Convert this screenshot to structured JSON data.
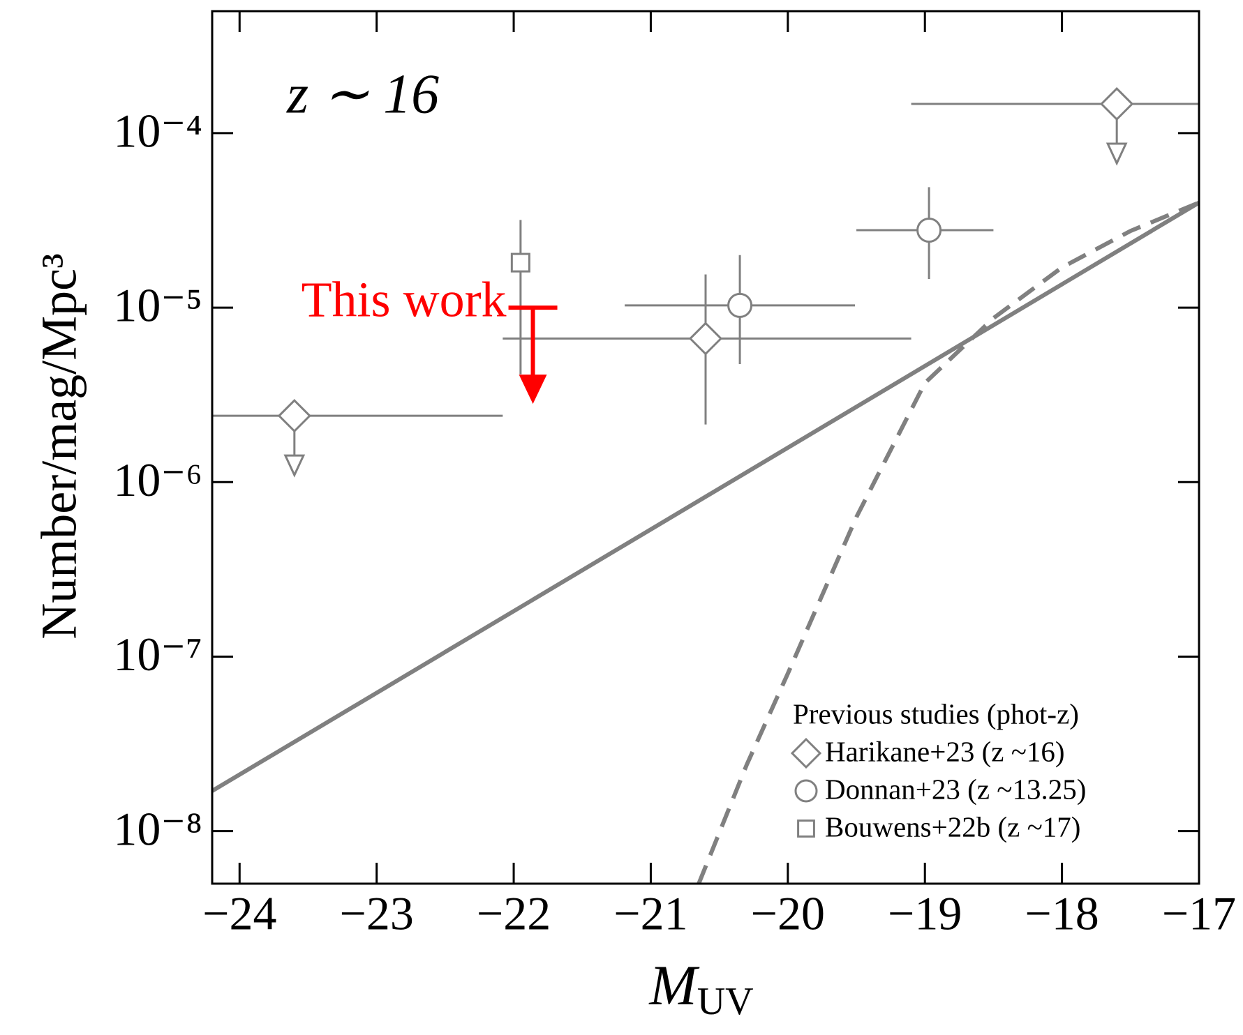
{
  "chart_data": {
    "type": "errorbar",
    "annotation": "z ∼ 16",
    "xlabel": {
      "text": "M",
      "subscript": "UV"
    },
    "ylabel": "Number/mag/Mpc³",
    "xlim": [
      -24.2,
      -17
    ],
    "ylim": [
      5e-09,
      0.0005
    ],
    "yscale": "log",
    "xticks": [
      {
        "value": -24,
        "label": "−24"
      },
      {
        "value": -23,
        "label": "−23"
      },
      {
        "value": -22,
        "label": "−22"
      },
      {
        "value": -21,
        "label": "−21"
      },
      {
        "value": -20,
        "label": "−20"
      },
      {
        "value": -19,
        "label": "−19"
      },
      {
        "value": -18,
        "label": "−18"
      },
      {
        "value": -17,
        "label": "−17"
      }
    ],
    "yticks": [
      {
        "value": 1e-08,
        "label": "10⁻⁸"
      },
      {
        "value": 1e-07,
        "label": "10⁻⁷"
      },
      {
        "value": 1e-06,
        "label": "10⁻⁶"
      },
      {
        "value": 1e-05,
        "label": "10⁻⁵"
      },
      {
        "value": 0.0001,
        "label": "10⁻⁴"
      }
    ],
    "legend_title": "Previous studies (phot-z)",
    "series": [
      {
        "name": "Harikane+23 (z ~16)",
        "color": "#808080",
        "marker": "diamond",
        "x": [
          -23.6,
          -20.6,
          -17.6
        ],
        "values": [
          2.4e-06,
          6.65e-06,
          0.000147
        ],
        "x_lower": [
          -24.2,
          -22.08,
          -19.1
        ],
        "x_upper": [
          -22.08,
          -19.1,
          -17
        ],
        "y_lower": [
          null,
          2.14e-06,
          null
        ],
        "y_upper": [
          null,
          1.55e-05,
          null
        ],
        "upper_limit": [
          true,
          false,
          true
        ]
      },
      {
        "name": "Donnan+23 (z ~13.25)",
        "color": "#808080",
        "marker": "circle",
        "x": [
          -20.35,
          -18.97
        ],
        "values": [
          1.03e-05,
          2.78e-05
        ],
        "x_lower": [
          -21.19,
          -19.5
        ],
        "x_upper": [
          -19.51,
          -18.5
        ],
        "y_lower": [
          4.75e-06,
          1.46e-05
        ],
        "y_upper": [
          2e-05,
          4.9e-05
        ],
        "upper_limit": [
          false,
          false
        ]
      },
      {
        "name": "Bouwens+22b (z ~17)",
        "color": "#808080",
        "marker": "square",
        "x": [
          -21.95
        ],
        "values": [
          1.81e-05
        ],
        "y_lower": [
          4.15e-06
        ],
        "y_upper": [
          3.18e-05
        ],
        "upper_limit": [
          false
        ]
      }
    ],
    "this_work": {
      "label": "This work",
      "color": "#ff0000",
      "x": [
        -21.86
      ],
      "values": [
        1e-05
      ],
      "upper_limit": [
        true
      ]
    },
    "models": [
      {
        "style": "solid",
        "color": "#808080",
        "x": [
          -24.2,
          -17
        ],
        "values": [
          1.7e-08,
          4e-05
        ]
      },
      {
        "style": "dashed",
        "color": "#808080",
        "x": [
          -20.65,
          -20.3,
          -20,
          -19.5,
          -19,
          -18.5,
          -18,
          -17.5,
          -17
        ],
        "values": [
          5e-09,
          2.4e-08,
          8e-08,
          6.3e-07,
          3.7e-06,
          8.7e-06,
          1.7e-05,
          2.75e-05,
          4e-05
        ]
      }
    ]
  }
}
